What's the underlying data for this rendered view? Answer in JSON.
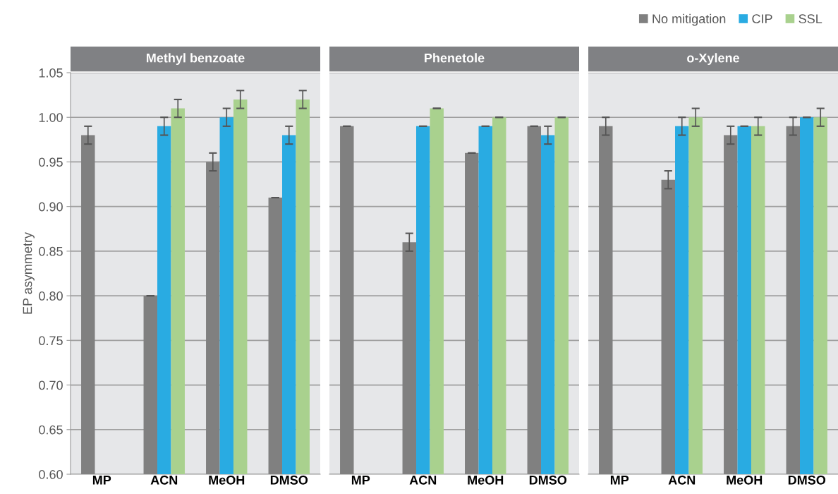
{
  "chart_data": [
    {
      "type": "bar",
      "title": "Methyl benzoate",
      "ylabel": "EP asymmetry",
      "categories": [
        "MP",
        "ACN",
        "MeOH",
        "DMSO"
      ],
      "series": [
        {
          "name": "No mitigation",
          "color": "#808080",
          "values": [
            0.98,
            0.8,
            0.95,
            0.91
          ],
          "errors": [
            0.01,
            0,
            0.01,
            0
          ]
        },
        {
          "name": "CIP",
          "color": "#29abe2",
          "values": [
            null,
            0.99,
            1.0,
            0.98
          ],
          "errors": [
            null,
            0.01,
            0.01,
            0.01
          ]
        },
        {
          "name": "SSL",
          "color": "#a9d18e",
          "values": [
            null,
            1.01,
            1.02,
            1.02
          ],
          "errors": [
            null,
            0.01,
            0.01,
            0.01
          ]
        }
      ],
      "ylim": [
        0.6,
        1.05
      ],
      "yticks": [
        {
          "value": 0.6,
          "label": "0.60"
        },
        0.65,
        {
          "value": 0.7,
          "label": "0.70"
        },
        0.75,
        {
          "value": 0.8,
          "label": "0.80"
        },
        0.85,
        {
          "value": 0.9,
          "label": "0.90"
        },
        0.95,
        {
          "value": 1.0,
          "label": "1.00"
        },
        1.05
      ],
      "grid": "y",
      "legend": "top right"
    },
    {
      "type": "bar",
      "title": "Phenetole",
      "categories": [
        "MP",
        "ACN",
        "MeOH",
        "DMSO"
      ],
      "series": [
        {
          "color": "#808080",
          "values": [
            0.99,
            0.86,
            0.96,
            0.99
          ],
          "errors": [
            0,
            0.01,
            0,
            0
          ]
        },
        {
          "color": "#29abe2",
          "values": [
            null,
            0.99,
            0.99,
            0.98
          ],
          "errors": [
            null,
            0,
            0,
            0.01
          ]
        },
        {
          "color": "#a9d18e",
          "values": [
            null,
            1.01,
            1.0,
            1.0
          ],
          "errors": [
            null,
            0,
            0,
            0
          ]
        }
      ],
      "ylim": [
        0.6,
        1.05
      ],
      "yticks": [
        {
          "value": 0.6,
          "label": null
        },
        {
          "value": 0.65,
          "label": null
        },
        {
          "value": 0.7,
          "label": null
        },
        {
          "value": 0.75,
          "label": null
        },
        {
          "value": 0.8,
          "label": null
        },
        {
          "value": 0.85,
          "label": null
        },
        {
          "value": 0.9,
          "label": null
        },
        {
          "value": 0.95,
          "label": null
        },
        {
          "value": 1.0,
          "label": null
        },
        {
          "value": 1.05,
          "label": null
        }
      ],
      "grid": "y",
      "tick_labels": "x"
    },
    {
      "type": "bar",
      "title": "o-Xylene",
      "categories": [
        "MP",
        "ACN",
        "MeOH",
        "DMSO"
      ],
      "series": [
        {
          "color": "#808080",
          "values": [
            0.99,
            0.93,
            0.98,
            0.99
          ],
          "errors": [
            0.01,
            0.01,
            0.01,
            0.01
          ]
        },
        {
          "color": "#29abe2",
          "values": [
            null,
            0.99,
            0.99,
            1.0
          ],
          "errors": [
            null,
            0.01,
            0,
            0
          ]
        },
        {
          "color": "#a9d18e",
          "values": [
            null,
            1.0,
            0.99,
            1.0
          ],
          "errors": [
            null,
            0.01,
            0.01,
            0.01
          ]
        }
      ],
      "ylim": [
        0.6,
        1.05
      ],
      "yticks": [
        {
          "value": 0.6,
          "label": null
        },
        {
          "value": 0.65,
          "label": null
        },
        {
          "value": 0.7,
          "label": null
        },
        {
          "value": 0.75,
          "label": null
        },
        {
          "value": 0.8,
          "label": null
        },
        {
          "value": 0.85,
          "label": null
        },
        {
          "value": 0.9,
          "label": null
        },
        {
          "value": 0.95,
          "label": null
        },
        {
          "value": 1.0,
          "label": null
        },
        {
          "value": 1.05,
          "label": null
        }
      ],
      "grid": "y",
      "tick_labels": "x"
    }
  ]
}
